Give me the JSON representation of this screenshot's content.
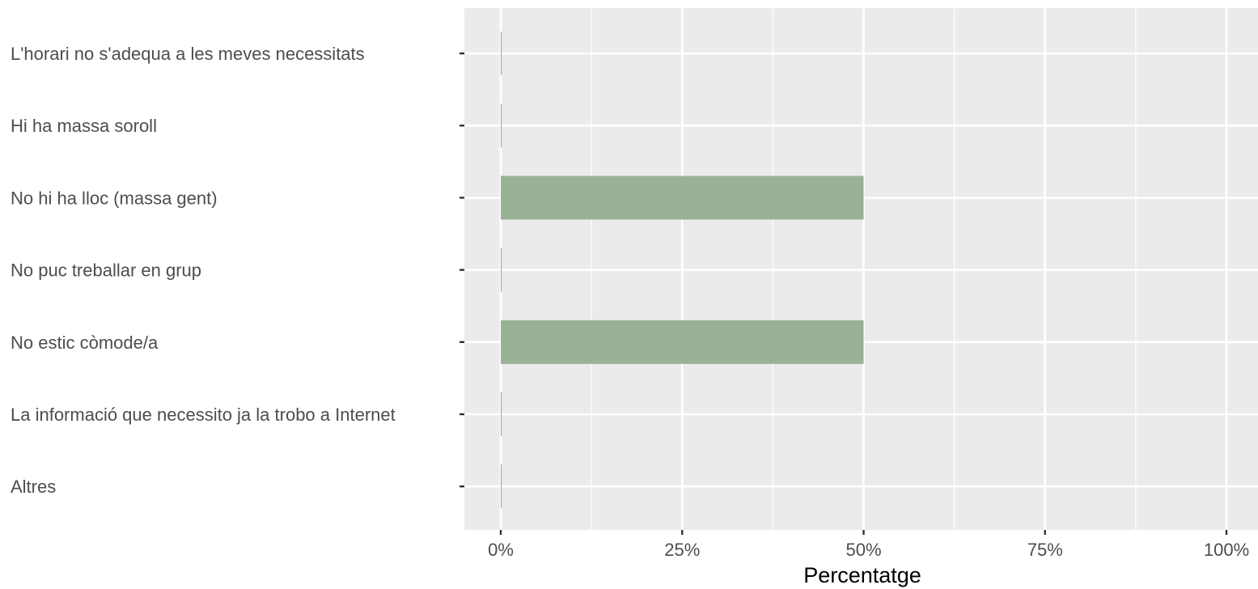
{
  "chart_data": {
    "type": "bar",
    "orientation": "horizontal",
    "categories": [
      "L'horari no s'adequa a les meves necessitats",
      "Hi ha massa soroll",
      "No hi ha lloc (massa gent)",
      "No puc treballar en grup",
      "No estic còmode/a",
      "La informació que necessito ja la trobo a Internet",
      "Altres"
    ],
    "values": [
      0,
      0,
      50,
      0,
      50,
      0,
      0
    ],
    "xlabel": "Percentatge",
    "ylabel": "",
    "xlim": [
      0,
      100
    ],
    "x_ticks": [
      0,
      25,
      50,
      75,
      100
    ],
    "x_tick_labels": [
      "0%",
      "25%",
      "50%",
      "75%",
      "100%"
    ],
    "grid": true,
    "colors": {
      "bar": "#99b295",
      "panel": "#ebebeb",
      "grid": "#ffffff"
    }
  }
}
